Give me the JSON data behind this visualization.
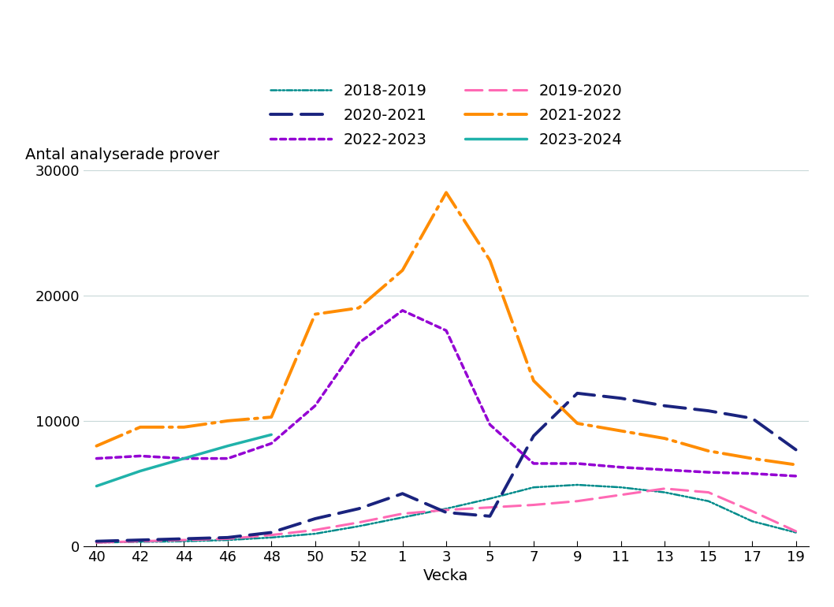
{
  "x_labels": [
    40,
    42,
    44,
    46,
    48,
    50,
    52,
    1,
    3,
    5,
    7,
    9,
    11,
    13,
    15,
    17,
    19
  ],
  "x_positions": [
    0,
    1,
    2,
    3,
    4,
    5,
    6,
    7,
    8,
    9,
    10,
    11,
    12,
    13,
    14,
    15,
    16
  ],
  "series": {
    "2018-2019": {
      "color": "#008B8B",
      "values": [
        300,
        350,
        400,
        500,
        700,
        1000,
        1600,
        2300,
        3000,
        3800,
        4700,
        4900,
        4700,
        4300,
        3600,
        2000,
        1100
      ]
    },
    "2019-2020": {
      "color": "#FF69B4",
      "values": [
        300,
        400,
        500,
        600,
        900,
        1300,
        1900,
        2600,
        2900,
        3100,
        3300,
        3600,
        4100,
        4600,
        4300,
        2800,
        1200
      ]
    },
    "2020-2021": {
      "color": "#1a237e",
      "values": [
        400,
        500,
        600,
        700,
        1100,
        2200,
        3000,
        4200,
        2700,
        2400,
        8800,
        12200,
        11800,
        11200,
        10800,
        10200,
        7700
      ]
    },
    "2021-2022": {
      "color": "#FF8C00",
      "values": [
        8000,
        9500,
        9500,
        10000,
        10300,
        18500,
        19000,
        22000,
        28200,
        22800,
        13200,
        9800,
        9200,
        8600,
        7600,
        7000,
        6500
      ]
    },
    "2022-2023": {
      "color": "#9400D3",
      "values": [
        7000,
        7200,
        7000,
        7000,
        8200,
        11200,
        16200,
        18800,
        17200,
        9700,
        6600,
        6600,
        6300,
        6100,
        5900,
        5800,
        5600
      ]
    },
    "2023-2024": {
      "color": "#20B2AA",
      "values": [
        4800,
        6000,
        7000,
        8000,
        8900,
        null,
        null,
        null,
        null,
        null,
        null,
        null,
        null,
        null,
        null,
        null,
        null
      ]
    }
  },
  "ylabel": "Antal analyserade prover",
  "xlabel": "Vecka",
  "ylim": [
    0,
    30000
  ],
  "yticks": [
    0,
    10000,
    20000,
    30000
  ],
  "background_color": "#ffffff",
  "grid_color": "#c8d8d8",
  "legend_fontsize": 14,
  "axis_label_fontsize": 14,
  "tick_fontsize": 13
}
